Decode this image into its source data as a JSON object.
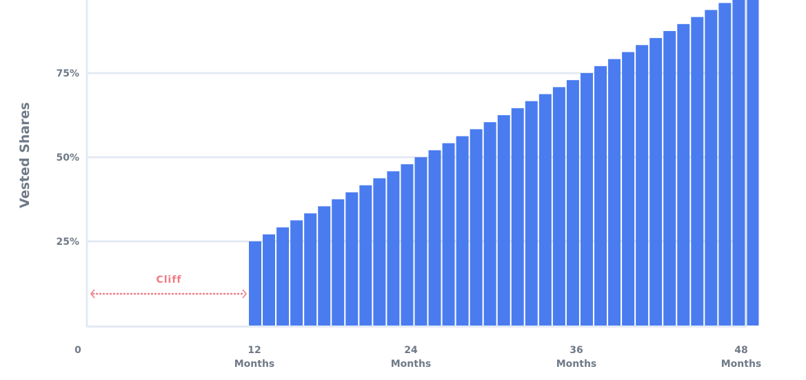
{
  "chart_data": {
    "type": "bar",
    "ylabel": "Vested Shares",
    "y_ticks": [
      "25%",
      "50%",
      "75%"
    ],
    "x_ticks": [
      {
        "value": 0,
        "label": "0",
        "sublabel": ""
      },
      {
        "value": 12,
        "label": "12",
        "sublabel": "Months"
      },
      {
        "value": 24,
        "label": "24",
        "sublabel": "Months"
      },
      {
        "value": 36,
        "label": "36",
        "sublabel": "Months"
      },
      {
        "value": 48,
        "label": "48",
        "sublabel": "Months"
      }
    ],
    "cliff": {
      "label": "Cliff",
      "start_month": 0,
      "end_month": 12
    },
    "bar_color": "#4a7cf0",
    "gridline_color": "#e3eaf4",
    "cliff_color": "#f07a82",
    "months": [
      12,
      13,
      14,
      15,
      16,
      17,
      18,
      19,
      20,
      21,
      22,
      23,
      24,
      25,
      26,
      27,
      28,
      29,
      30,
      31,
      32,
      33,
      34,
      35,
      36,
      37,
      38,
      39,
      40,
      41,
      42,
      43,
      44,
      45,
      46,
      47,
      48
    ],
    "values": [
      25,
      27.08,
      29.17,
      31.25,
      33.33,
      35.42,
      37.5,
      39.58,
      41.67,
      43.75,
      45.83,
      47.92,
      50,
      52.08,
      54.17,
      56.25,
      58.33,
      60.42,
      62.5,
      64.58,
      66.67,
      68.75,
      70.83,
      72.92,
      75,
      77.08,
      79.17,
      81.25,
      83.33,
      85.42,
      87.5,
      89.58,
      91.67,
      93.75,
      95.83,
      97.92,
      100
    ]
  }
}
